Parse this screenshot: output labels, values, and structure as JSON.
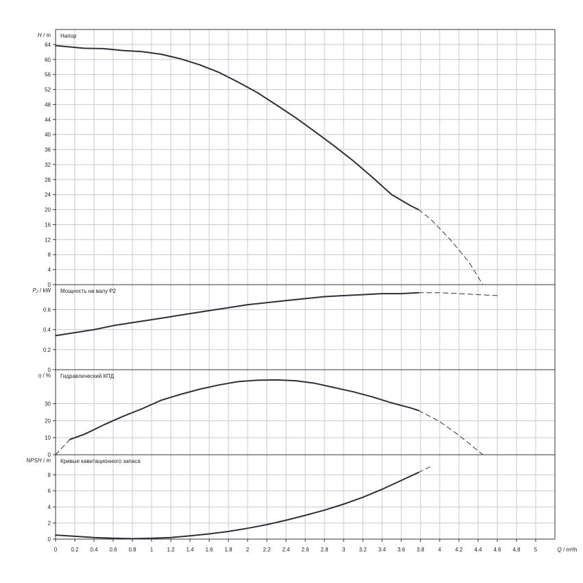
{
  "chart_data": [
    {
      "type": "line",
      "title": "Напор",
      "ylabel_symbol": "H",
      "ylabel_unit": "/ m",
      "ylim": [
        0,
        68
      ],
      "yticks": [
        0,
        4,
        8,
        12,
        16,
        20,
        24,
        28,
        32,
        36,
        40,
        44,
        48,
        52,
        56,
        60,
        64
      ],
      "grid": true,
      "series": [
        {
          "style": "solid",
          "x": [
            0,
            0.3,
            0.5,
            0.7,
            0.9,
            1.1,
            1.3,
            1.5,
            1.7,
            1.9,
            2.1,
            2.3,
            2.5,
            2.7,
            2.9,
            3.1,
            3.3,
            3.5,
            3.7,
            3.78
          ],
          "y": [
            63.7,
            63.0,
            62.9,
            62.4,
            62.1,
            61.4,
            60.2,
            58.6,
            56.6,
            54.0,
            51.2,
            47.9,
            44.5,
            40.8,
            37.0,
            33.0,
            28.6,
            24.0,
            21.0,
            20.0
          ]
        },
        {
          "style": "dashed",
          "x": [
            3.78,
            3.9,
            4.1,
            4.3,
            4.45
          ],
          "y": [
            20.0,
            17.6,
            12.3,
            6.2,
            0
          ]
        }
      ]
    },
    {
      "type": "line",
      "title": "Мощность на валу P2",
      "ylabel_symbol": "P₂",
      "ylabel_unit": "/ kW",
      "ylim": [
        0,
        0.85
      ],
      "yticks": [
        0,
        0.2,
        0.4,
        0.6
      ],
      "ytick_labels": [
        "0",
        "0.2",
        "0.4",
        "0.6"
      ],
      "grid": true,
      "series": [
        {
          "style": "solid",
          "x": [
            0,
            0.2,
            0.4,
            0.6,
            0.8,
            1.0,
            1.2,
            1.4,
            1.6,
            1.8,
            2.0,
            2.2,
            2.4,
            2.6,
            2.8,
            3.0,
            3.2,
            3.4,
            3.6,
            3.78
          ],
          "y": [
            0.34,
            0.37,
            0.4,
            0.44,
            0.47,
            0.5,
            0.53,
            0.56,
            0.59,
            0.62,
            0.65,
            0.67,
            0.69,
            0.71,
            0.73,
            0.74,
            0.75,
            0.76,
            0.76,
            0.77
          ]
        },
        {
          "style": "dashed",
          "x": [
            3.78,
            4.0,
            4.2,
            4.4,
            4.6
          ],
          "y": [
            0.77,
            0.77,
            0.76,
            0.75,
            0.74
          ]
        }
      ]
    },
    {
      "type": "line",
      "title": "Гидравлический КПД",
      "ylabel_symbol": "η",
      "ylabel_unit": "/ %",
      "ylim": [
        0,
        50
      ],
      "yticks": [
        0,
        10,
        20,
        30
      ],
      "grid": true,
      "series": [
        {
          "style": "solid",
          "x": [
            0.15,
            0.3,
            0.5,
            0.7,
            0.9,
            1.1,
            1.3,
            1.5,
            1.7,
            1.9,
            2.1,
            2.3,
            2.5,
            2.7,
            2.9,
            3.1,
            3.3,
            3.5,
            3.7,
            3.78
          ],
          "y": [
            9.0,
            12.0,
            17.5,
            22.5,
            27.0,
            32.0,
            35.5,
            38.5,
            41.0,
            43.0,
            43.8,
            44.0,
            43.5,
            42.0,
            39.5,
            37.0,
            34.0,
            30.5,
            27.5,
            26.0
          ]
        },
        {
          "style": "dashed",
          "x": [
            0,
            0.15
          ],
          "y": [
            0,
            9.0
          ]
        },
        {
          "style": "dashed",
          "x": [
            3.78,
            4.0,
            4.2,
            4.45
          ],
          "y": [
            26.0,
            19.5,
            11.5,
            0
          ]
        }
      ]
    },
    {
      "type": "line",
      "title": "Кривые кавитационного запаса",
      "ylabel_symbol": "NPSH",
      "ylabel_unit": "/ m",
      "ylim": [
        0,
        10.5
      ],
      "yticks": [
        0,
        2,
        4,
        6,
        8
      ],
      "xlabel_symbol": "Q",
      "xlabel_unit": "/ m³/h",
      "xlim": [
        0,
        5.2
      ],
      "xticks": [
        0,
        0.2,
        0.4,
        0.6,
        0.8,
        1,
        1.2,
        1.4,
        1.6,
        1.8,
        2,
        2.2,
        2.4,
        2.6,
        2.8,
        3,
        3.2,
        3.4,
        3.6,
        3.8,
        4,
        4.2,
        4.4,
        4.6,
        4.8,
        5
      ],
      "grid": true,
      "series": [
        {
          "style": "solid",
          "x": [
            0,
            0.2,
            0.4,
            0.6,
            0.8,
            1.0,
            1.2,
            1.4,
            1.6,
            1.8,
            2.0,
            2.2,
            2.4,
            2.6,
            2.8,
            3.0,
            3.2,
            3.4,
            3.6,
            3.78
          ],
          "y": [
            0.5,
            0.35,
            0.2,
            0.1,
            0.05,
            0.1,
            0.2,
            0.4,
            0.65,
            0.95,
            1.35,
            1.8,
            2.35,
            2.95,
            3.6,
            4.35,
            5.2,
            6.2,
            7.3,
            8.3
          ]
        },
        {
          "style": "dashed",
          "x": [
            3.78,
            3.9
          ],
          "y": [
            8.3,
            9.0
          ]
        }
      ]
    }
  ]
}
